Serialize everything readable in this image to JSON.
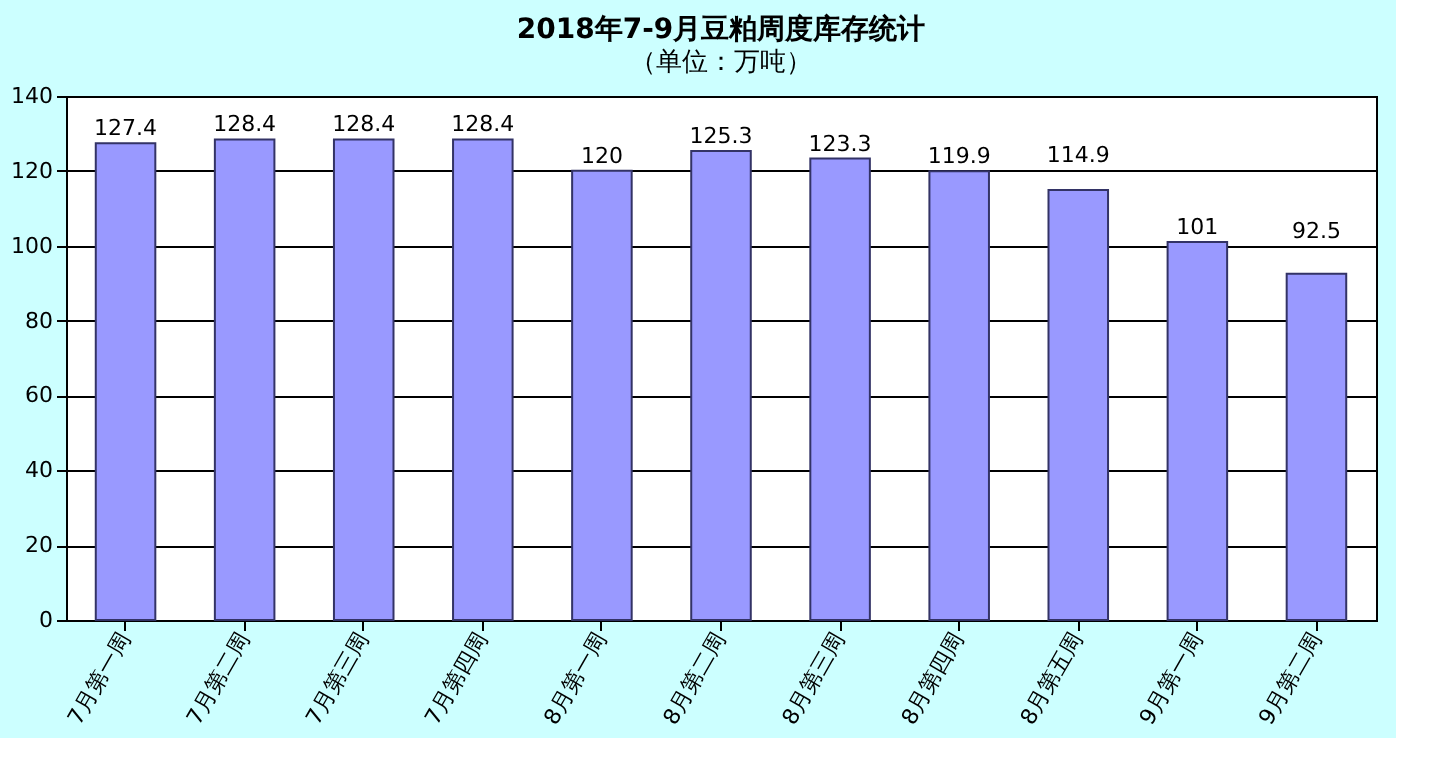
{
  "chart_data": {
    "type": "bar",
    "title": "2018年7-9月豆粕周度库存统计",
    "subtitle": "（单位：万吨）",
    "categories": [
      "7月第一周",
      "7月第二周",
      "7月第三周",
      "7月第四周",
      "8月第一周",
      "8月第二周",
      "8月第三周",
      "8月第四周",
      "8月第五周",
      "9月第一周",
      "9月第二周"
    ],
    "values": [
      127.4,
      128.4,
      128.4,
      128.4,
      120,
      125.3,
      123.3,
      119.9,
      114.9,
      101,
      92.5
    ],
    "color": "#9999ff",
    "ylim": [
      0,
      140
    ],
    "yticks": [
      0,
      20,
      40,
      60,
      80,
      100,
      120,
      140
    ],
    "grid": "y",
    "data_labels": true
  }
}
